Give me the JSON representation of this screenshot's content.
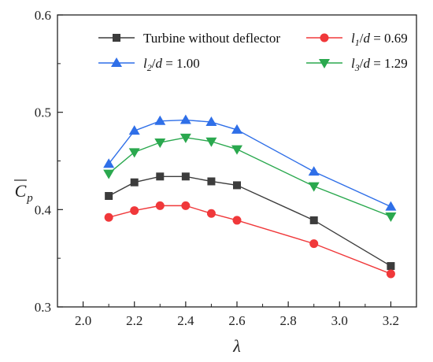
{
  "chart_data": {
    "type": "line",
    "x": [
      2.1,
      2.2,
      2.3,
      2.4,
      2.5,
      2.6,
      2.9,
      3.2
    ],
    "xlabel": "λ",
    "ylabel": "C̄p",
    "xlim": [
      1.9,
      3.3
    ],
    "ylim": [
      0.3,
      0.6
    ],
    "xticks": [
      "2.0",
      "2.2",
      "2.4",
      "2.6",
      "2.8",
      "3.0",
      "3.2"
    ],
    "yticks": [
      "0.3",
      "0.4",
      "0.5",
      "0.6"
    ],
    "grid": false,
    "legend_position": "top",
    "series": [
      {
        "name": "Turbine without deflector",
        "color": "#3c3c3c",
        "marker": "square",
        "values": [
          0.414,
          0.428,
          0.434,
          0.434,
          0.429,
          0.425,
          0.389,
          0.342
        ]
      },
      {
        "name": "l1/d = 0.69",
        "color": "#f0383a",
        "marker": "circle",
        "values": [
          0.392,
          0.399,
          0.404,
          0.404,
          0.396,
          0.389,
          0.365,
          0.334
        ]
      },
      {
        "name": "l2/d = 1.00",
        "color": "#2f6fe8",
        "marker": "triangle-up",
        "values": [
          0.447,
          0.481,
          0.491,
          0.492,
          0.49,
          0.482,
          0.439,
          0.403
        ]
      },
      {
        "name": "l3/d = 1.29",
        "color": "#2aa84e",
        "marker": "triangle-down",
        "values": [
          0.437,
          0.459,
          0.469,
          0.474,
          0.47,
          0.462,
          0.424,
          0.393
        ]
      }
    ]
  }
}
